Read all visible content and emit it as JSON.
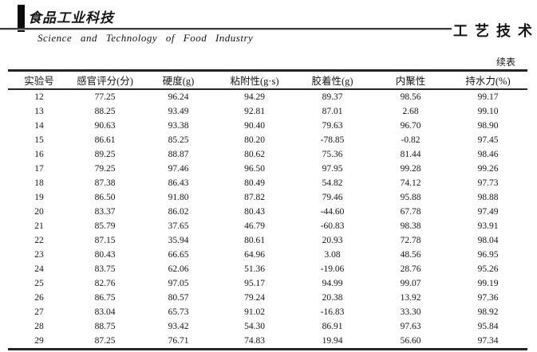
{
  "masthead": {
    "journal_logo_zh": "食品工业科技",
    "journal_title_en": "Science  and  Technology  of  Food  Industry",
    "section_label_zh": "工艺技术"
  },
  "table": {
    "continued_label": "续表",
    "headers": [
      "实验号",
      "感官评分(分)",
      "硬度(g)",
      "粘附性(g·s)",
      "胶着性(g)",
      "内聚性",
      "持水力(%)"
    ],
    "rows": [
      [
        "12",
        "77.25",
        "96.24",
        "94.29",
        "89.37",
        "98.56",
        "99.17"
      ],
      [
        "13",
        "88.25",
        "93.49",
        "92.81",
        "87.01",
        "2.68",
        "99.10"
      ],
      [
        "14",
        "90.63",
        "93.38",
        "90.40",
        "79.63",
        "96.70",
        "98.90"
      ],
      [
        "15",
        "86.61",
        "85.25",
        "80.20",
        "-78.85",
        "-0.82",
        "97.45"
      ],
      [
        "16",
        "89.25",
        "88.87",
        "80.62",
        "75.36",
        "81.44",
        "98.46"
      ],
      [
        "17",
        "79.25",
        "97.46",
        "96.50",
        "97.95",
        "99.28",
        "99.26"
      ],
      [
        "18",
        "87.38",
        "86.43",
        "80.49",
        "54.82",
        "74.12",
        "97.73"
      ],
      [
        "19",
        "86.50",
        "91.80",
        "87.82",
        "79.46",
        "95.88",
        "98.88"
      ],
      [
        "20",
        "83.37",
        "86.02",
        "80.43",
        "-44.60",
        "67.78",
        "97.49"
      ],
      [
        "21",
        "85.79",
        "37.65",
        "46.79",
        "-60.83",
        "98.38",
        "93.91"
      ],
      [
        "22",
        "87.15",
        "35.94",
        "80.61",
        "20.93",
        "72.78",
        "98.04"
      ],
      [
        "23",
        "80.43",
        "66.65",
        "64.96",
        "3.08",
        "48.56",
        "96.95"
      ],
      [
        "24",
        "83.75",
        "62.06",
        "51.36",
        "-19.06",
        "28.76",
        "95.26"
      ],
      [
        "25",
        "82.76",
        "97.05",
        "95.17",
        "94.99",
        "99.07",
        "99.19"
      ],
      [
        "26",
        "86.75",
        "80.57",
        "79.24",
        "20.38",
        "13.92",
        "97.36"
      ],
      [
        "27",
        "83.04",
        "65.73",
        "91.02",
        "-16.83",
        "33.30",
        "98.92"
      ],
      [
        "28",
        "88.75",
        "93.42",
        "54.30",
        "86.91",
        "97.63",
        "95.84"
      ],
      [
        "29",
        "87.25",
        "76.71",
        "74.83",
        "19.94",
        "56.60",
        "97.34"
      ]
    ]
  }
}
